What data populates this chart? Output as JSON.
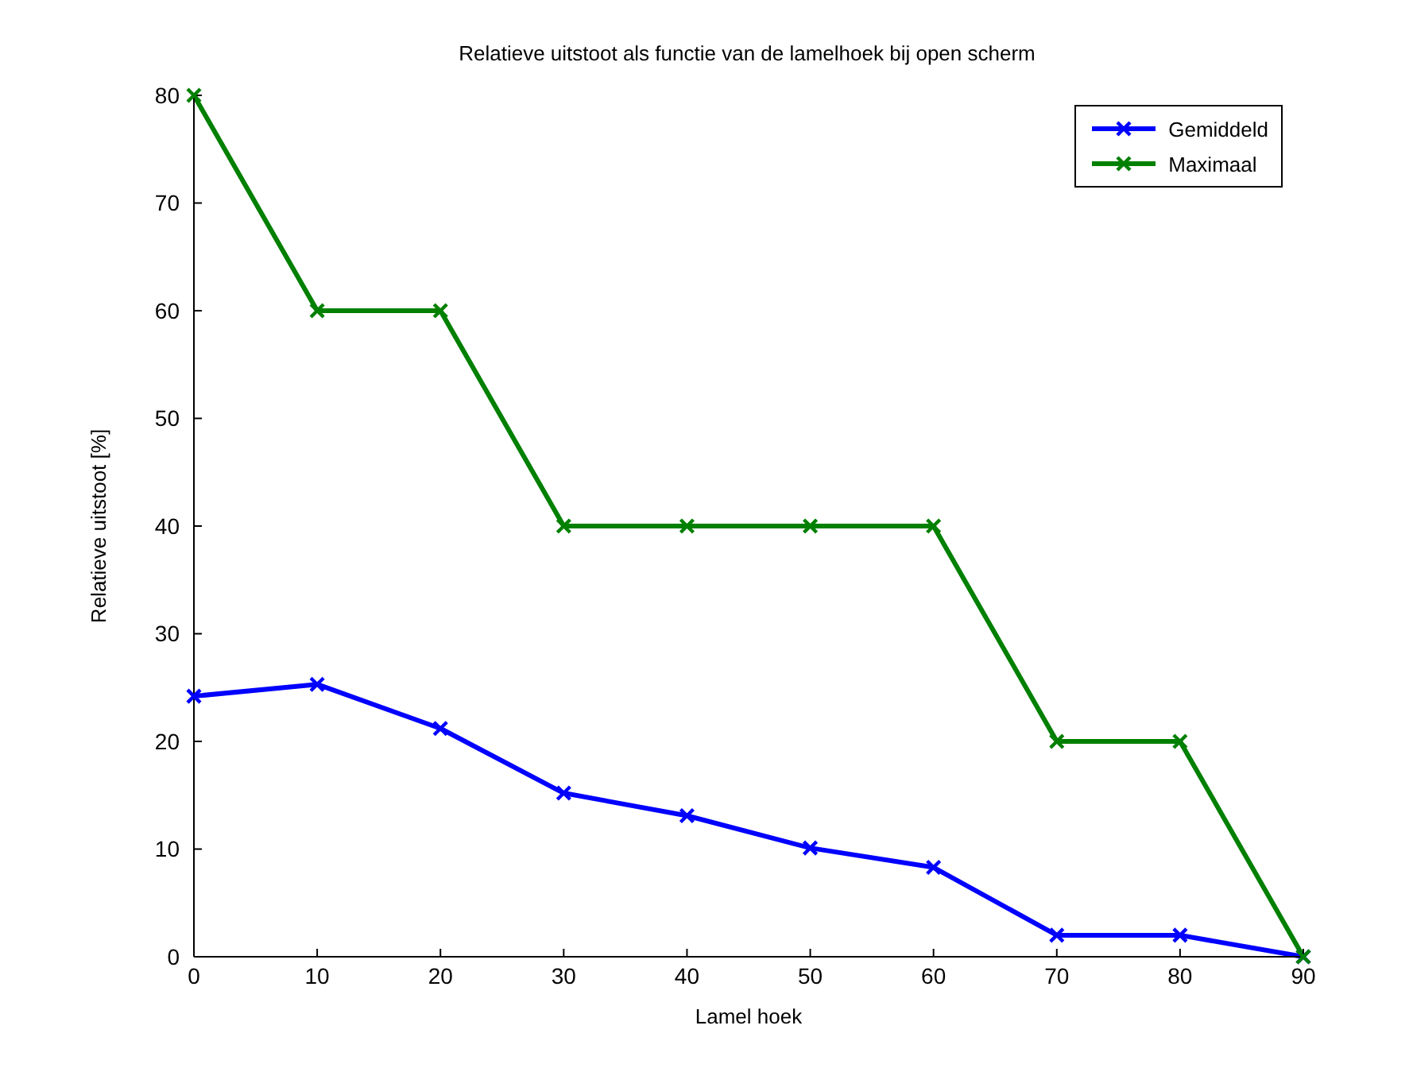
{
  "chart_data": {
    "type": "line",
    "title": "Relatieve uitstoot als functie van de lamelhoek bij open scherm",
    "xlabel": "Lamel hoek",
    "ylabel": "Relatieve uitstoot [%]",
    "x": [
      0,
      10,
      20,
      30,
      40,
      50,
      60,
      70,
      80,
      90
    ],
    "series": [
      {
        "name": "Gemiddeld",
        "color": "#0000ff",
        "values": [
          24.2,
          25.3,
          21.2,
          15.2,
          13.1,
          10.1,
          8.3,
          2,
          2,
          0
        ]
      },
      {
        "name": "Maximaal",
        "color": "#008000",
        "values": [
          80,
          60,
          60,
          40,
          40,
          40,
          40,
          20,
          20,
          0
        ]
      }
    ],
    "xlim": [
      0,
      90
    ],
    "xticks": [
      0,
      10,
      20,
      30,
      40,
      50,
      60,
      70,
      80,
      90
    ],
    "ylim": [
      0,
      80
    ],
    "yticks": [
      0,
      10,
      20,
      30,
      40,
      50,
      60,
      70,
      80
    ],
    "grid": false,
    "legend": "top right",
    "marker": "cross",
    "line_style": "solid"
  }
}
